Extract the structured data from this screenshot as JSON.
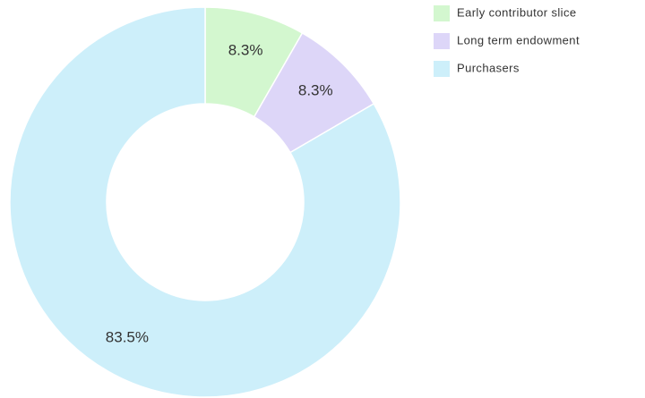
{
  "chart_data": {
    "type": "donut",
    "categories": [
      "Early contributor slice",
      "Long term endowment",
      "Purchasers"
    ],
    "values": [
      8.3,
      8.3,
      83.5
    ],
    "value_labels": [
      "8.3%",
      "8.3%",
      "83.5%"
    ],
    "colors": [
      "#d3f7cf",
      "#ddd6f8",
      "#cdeffa"
    ],
    "legend": "top-right"
  }
}
